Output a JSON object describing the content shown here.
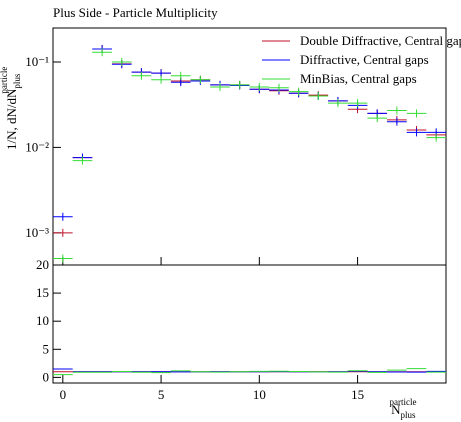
{
  "chart_data": {
    "type": "histogram-ratio",
    "title": "Plus Side - Particle Multiplicity",
    "x_label": {
      "base": "N",
      "sub": "plus",
      "sup": "particle"
    },
    "y_label": {
      "base": "1/N, dN/dN",
      "sub": "plus",
      "sup": "particle"
    },
    "x": [
      0,
      1,
      2,
      3,
      4,
      5,
      6,
      7,
      8,
      9,
      10,
      11,
      12,
      13,
      14,
      15,
      16,
      17,
      18,
      19
    ],
    "xlim": [
      -0.5,
      19.5
    ],
    "xticks": [
      0,
      5,
      10,
      15
    ],
    "log_y": true,
    "ylim": [
      0.00042,
      0.25
    ],
    "yticks": [
      {
        "value": 0.001,
        "label": "10⁻³"
      },
      {
        "value": 0.01,
        "label": "10⁻²"
      },
      {
        "value": 0.1,
        "label": "10⁻¹"
      }
    ],
    "ratio_ylim": [
      -1,
      20
    ],
    "ratio_yticks": [
      0,
      5,
      10,
      15,
      20
    ],
    "legend": "top-right",
    "series": [
      {
        "name": "Double Diffractive, Central gaps",
        "color": "#c0102a",
        "values": [
          0.001,
          0.0076,
          0.142,
          0.095,
          0.076,
          0.074,
          0.06,
          0.062,
          0.054,
          0.054,
          0.048,
          0.046,
          0.043,
          0.041,
          0.035,
          0.028,
          0.025,
          0.021,
          0.016,
          0.014
        ],
        "ratio": [
          1,
          1,
          1,
          1,
          1,
          1,
          1,
          1,
          1,
          1,
          1,
          1,
          1,
          1,
          1,
          1,
          1,
          1,
          1,
          1
        ]
      },
      {
        "name": "Diffractive, Central gaps",
        "color": "#0000ff",
        "values": [
          0.00154,
          0.0076,
          0.142,
          0.094,
          0.076,
          0.074,
          0.058,
          0.06,
          0.054,
          0.053,
          0.048,
          0.047,
          0.043,
          0.04,
          0.035,
          0.031,
          0.025,
          0.02,
          0.015,
          0.015
        ],
        "ratio": [
          1.5,
          1,
          1,
          1,
          1,
          1,
          0.97,
          0.97,
          1,
          0.98,
          1,
          1.02,
          1,
          0.98,
          1,
          1.1,
          1,
          0.95,
          0.94,
          1.07
        ]
      },
      {
        "name": "MinBias, Central gaps",
        "color": "#33dd33",
        "values": [
          0.0005,
          0.007,
          0.13,
          0.1,
          0.069,
          0.062,
          0.069,
          0.062,
          0.051,
          0.054,
          0.051,
          0.05,
          0.045,
          0.04,
          0.033,
          0.033,
          0.022,
          0.027,
          0.025,
          0.013
        ],
        "ratio": [
          0.5,
          0.92,
          0.92,
          1.05,
          0.91,
          0.84,
          1.15,
          1,
          0.94,
          1,
          1.06,
          1.09,
          1.05,
          0.98,
          0.94,
          1.18,
          0.88,
          1.29,
          1.56,
          0.93
        ]
      }
    ]
  }
}
